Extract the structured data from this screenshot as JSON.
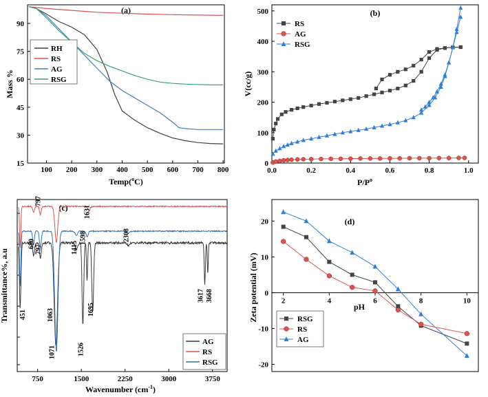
{
  "chart_data": [
    {
      "id": "a",
      "type": "line",
      "panel_label": "(a)",
      "xlabel": "Temp(",
      "xlabel_sup": "o",
      "xlabel_tail": "C)",
      "ylabel": "Mass %",
      "xlim": [
        25,
        805
      ],
      "ylim": [
        15,
        100
      ],
      "xticks": [
        100,
        200,
        300,
        400,
        500,
        600,
        700,
        800
      ],
      "yticks": [
        15,
        30,
        45,
        60,
        75,
        90
      ],
      "legend": [
        "RH",
        "RS",
        "AG",
        "RSG"
      ],
      "series": [
        {
          "name": "RH",
          "color": "#404040",
          "x": [
            30,
            60,
            100,
            150,
            200,
            250,
            300,
            340,
            370,
            400,
            450,
            500,
            550,
            600,
            650,
            700,
            750,
            800
          ],
          "y": [
            99,
            98,
            95,
            91,
            88,
            84,
            76,
            64,
            52,
            43,
            38,
            34,
            31,
            28.5,
            27,
            26,
            25.5,
            25.3
          ]
        },
        {
          "name": "RS",
          "color": "#d9534f",
          "x": [
            30,
            100,
            200,
            300,
            400,
            500,
            600,
            700,
            800
          ],
          "y": [
            99,
            98,
            97,
            96,
            95.5,
            95,
            94.7,
            94.5,
            94.3
          ]
        },
        {
          "name": "AG",
          "color": "#4a7db8",
          "x": [
            30,
            60,
            100,
            150,
            200,
            250,
            300,
            350,
            400,
            450,
            500,
            550,
            600,
            625,
            650,
            700,
            750,
            800
          ],
          "y": [
            99,
            98,
            94,
            87,
            80,
            73,
            66,
            59,
            54,
            50,
            46,
            42,
            37,
            34,
            33.5,
            33,
            33,
            33
          ]
        },
        {
          "name": "RSG",
          "color": "#3aa07a",
          "x": [
            30,
            60,
            100,
            150,
            200,
            250,
            300,
            350,
            400,
            450,
            500,
            550,
            600,
            650,
            700,
            750,
            800
          ],
          "y": [
            99,
            98,
            93,
            86,
            80,
            74,
            70,
            67,
            64.5,
            62,
            60,
            58.5,
            57.8,
            57.4,
            57.2,
            57,
            57
          ]
        }
      ]
    },
    {
      "id": "b",
      "type": "scatter",
      "panel_label": "(b)",
      "xlabel": "P/P",
      "xlabel_sup": "o",
      "ylabel": "V(cc/g)",
      "xlim": [
        0,
        1.05
      ],
      "ylim": [
        0,
        520
      ],
      "xticks": [
        0.0,
        0.2,
        0.4,
        0.6,
        0.8,
        1.0
      ],
      "yticks": [
        0,
        100,
        200,
        300,
        400,
        500
      ],
      "legend": [
        "RS",
        "AG",
        "RSG"
      ],
      "series": [
        {
          "name": "RS",
          "color": "#444444",
          "marker": "square",
          "adsorption_x": [
            0.005,
            0.01,
            0.02,
            0.03,
            0.05,
            0.07,
            0.1,
            0.13,
            0.16,
            0.2,
            0.24,
            0.28,
            0.32,
            0.36,
            0.4,
            0.44,
            0.48,
            0.52,
            0.56,
            0.6,
            0.64,
            0.68,
            0.72,
            0.76,
            0.8,
            0.84,
            0.88,
            0.92,
            0.96
          ],
          "adsorption_y": [
            80,
            110,
            130,
            145,
            160,
            168,
            175,
            180,
            184,
            189,
            194,
            198,
            202,
            206,
            210,
            214,
            220,
            226,
            232,
            238,
            245,
            255,
            270,
            300,
            345,
            372,
            378,
            380,
            381
          ],
          "desorption_x": [
            0.96,
            0.92,
            0.88,
            0.84,
            0.8,
            0.76,
            0.72,
            0.68,
            0.64,
            0.6,
            0.56,
            0.53
          ],
          "desorption_y": [
            381,
            380,
            378,
            375,
            365,
            340,
            320,
            308,
            300,
            290,
            275,
            245
          ]
        },
        {
          "name": "AG",
          "color": "#d9534f",
          "marker": "circle",
          "adsorption_x": [
            0.005,
            0.02,
            0.04,
            0.06,
            0.08,
            0.1,
            0.13,
            0.16,
            0.2,
            0.25,
            0.3,
            0.35,
            0.4,
            0.45,
            0.5,
            0.55,
            0.6,
            0.65,
            0.7,
            0.75,
            0.8,
            0.85,
            0.9,
            0.95,
            0.98
          ],
          "adsorption_y": [
            2,
            5,
            7,
            9,
            10,
            11,
            12,
            12.5,
            13,
            13.5,
            14,
            14,
            14.5,
            15,
            15,
            15,
            15.5,
            15.5,
            16,
            16,
            16,
            16.5,
            16.5,
            17,
            17
          ],
          "desorption_x": [],
          "desorption_y": []
        },
        {
          "name": "RSG",
          "color": "#2f7fd8",
          "marker": "triangle",
          "adsorption_x": [
            0.005,
            0.02,
            0.04,
            0.06,
            0.08,
            0.1,
            0.13,
            0.16,
            0.2,
            0.24,
            0.28,
            0.32,
            0.36,
            0.4,
            0.44,
            0.48,
            0.52,
            0.56,
            0.6,
            0.64,
            0.68,
            0.72,
            0.76,
            0.8,
            0.83,
            0.86,
            0.88,
            0.9,
            0.92,
            0.94,
            0.96
          ],
          "adsorption_y": [
            30,
            40,
            48,
            55,
            60,
            65,
            70,
            75,
            80,
            85,
            90,
            95,
            100,
            104,
            108,
            112,
            117,
            122,
            127,
            133,
            140,
            150,
            165,
            190,
            215,
            250,
            285,
            330,
            380,
            440,
            510
          ],
          "desorption_x": [
            0.96,
            0.94,
            0.92,
            0.9,
            0.88,
            0.86,
            0.84,
            0.82,
            0.8,
            0.78,
            0.76
          ],
          "desorption_y": [
            480,
            430,
            380,
            330,
            290,
            260,
            235,
            215,
            200,
            185,
            175
          ]
        }
      ]
    },
    {
      "id": "c",
      "type": "line",
      "panel_label": "(c)",
      "xlabel": "Wavenumber (cm",
      "xlabel_sup": "-1",
      "xlabel_tail": ")",
      "ylabel": "Transmittance%, a.u",
      "xlim": [
        400,
        4000
      ],
      "xticks": [
        750,
        1500,
        2250,
        3000,
        3750
      ],
      "legend": [
        "AG",
        "RS",
        "RSG"
      ],
      "annotations": [
        "797",
        "680",
        "797",
        "451",
        "1063",
        "1071",
        "1415",
        "1631",
        "1598",
        "1526",
        "1695",
        "2308",
        "3617",
        "3668"
      ],
      "series": [
        {
          "name": "AG",
          "color": "#3a3a3a"
        },
        {
          "name": "RS",
          "color": "#d9534f"
        },
        {
          "name": "RSG",
          "color": "#2f6fba"
        }
      ]
    },
    {
      "id": "d",
      "type": "line",
      "panel_label": "(d)",
      "xlabel": "pH",
      "ylabel": "Zeta potential (mV)",
      "xlim": [
        1.5,
        10.5
      ],
      "ylim": [
        -22,
        26
      ],
      "xticks": [
        2,
        4,
        6,
        8,
        10
      ],
      "yticks": [
        -20,
        -10,
        0,
        10,
        20
      ],
      "legend": [
        "RSG",
        "RS",
        "AG"
      ],
      "series": [
        {
          "name": "RSG",
          "color": "#444444",
          "marker": "square",
          "x": [
            2,
            3,
            4,
            5,
            6,
            7,
            8,
            10
          ],
          "y": [
            18.4,
            15.5,
            8.6,
            5.0,
            2.9,
            -3.8,
            -9.2,
            -14.2
          ]
        },
        {
          "name": "RS",
          "color": "#d9534f",
          "marker": "circle",
          "x": [
            2,
            3,
            4,
            5,
            6,
            7,
            8,
            10
          ],
          "y": [
            14.3,
            9.3,
            4.7,
            1.5,
            0.5,
            -4.8,
            -8.8,
            -11.4
          ]
        },
        {
          "name": "AG",
          "color": "#2f7fd8",
          "marker": "triangle",
          "x": [
            2,
            3,
            4,
            5,
            6,
            7,
            8,
            10
          ],
          "y": [
            22.5,
            20.0,
            14.4,
            11.2,
            7.3,
            1.0,
            -6.0,
            -17.6
          ]
        }
      ]
    }
  ]
}
